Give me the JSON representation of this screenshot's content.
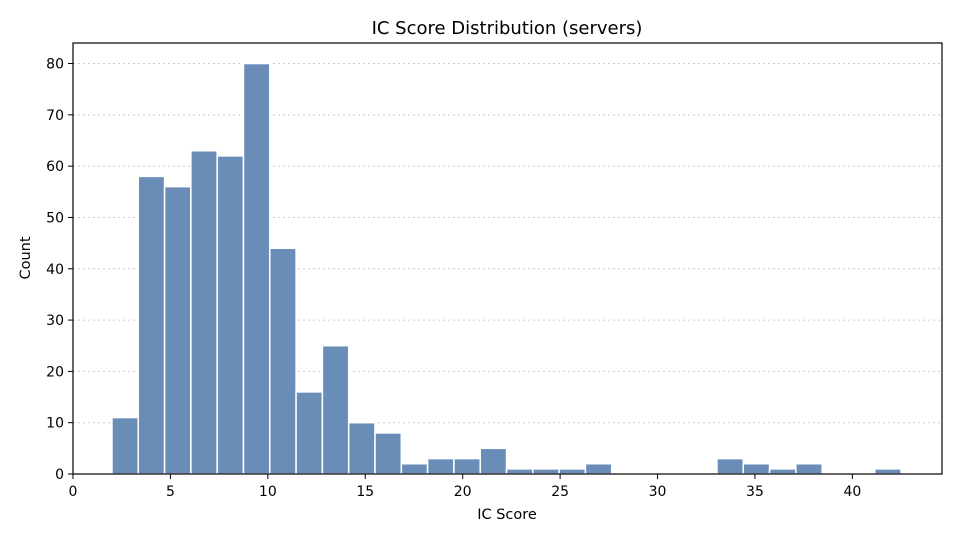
{
  "chart_data": {
    "type": "bar",
    "title": "IC Score Distribution (servers)",
    "xlabel": "IC Score",
    "ylabel": "Count",
    "xlim": [
      0,
      44.6
    ],
    "ylim": [
      0,
      84
    ],
    "xticks": [
      "0",
      "5",
      "10",
      "15",
      "20",
      "25",
      "30",
      "35",
      "40"
    ],
    "yticks": [
      "0",
      "10",
      "20",
      "30",
      "40",
      "50",
      "60",
      "70",
      "80"
    ],
    "grid": "horizontal dotted",
    "bin_width": 1.35,
    "bins": [
      {
        "start": 2.0,
        "count": 11
      },
      {
        "start": 3.35,
        "count": 58
      },
      {
        "start": 4.7,
        "count": 56
      },
      {
        "start": 6.05,
        "count": 63
      },
      {
        "start": 7.4,
        "count": 62
      },
      {
        "start": 8.75,
        "count": 80
      },
      {
        "start": 10.1,
        "count": 44
      },
      {
        "start": 11.45,
        "count": 16
      },
      {
        "start": 12.8,
        "count": 25
      },
      {
        "start": 14.15,
        "count": 10
      },
      {
        "start": 15.5,
        "count": 8
      },
      {
        "start": 16.85,
        "count": 2
      },
      {
        "start": 18.2,
        "count": 3
      },
      {
        "start": 19.55,
        "count": 3
      },
      {
        "start": 20.9,
        "count": 5
      },
      {
        "start": 22.25,
        "count": 1
      },
      {
        "start": 23.6,
        "count": 1
      },
      {
        "start": 24.95,
        "count": 1
      },
      {
        "start": 26.3,
        "count": 2
      },
      {
        "start": 27.65,
        "count": 0
      },
      {
        "start": 29.0,
        "count": 0
      },
      {
        "start": 30.35,
        "count": 0
      },
      {
        "start": 31.7,
        "count": 0
      },
      {
        "start": 33.05,
        "count": 3
      },
      {
        "start": 34.4,
        "count": 2
      },
      {
        "start": 35.75,
        "count": 1
      },
      {
        "start": 37.1,
        "count": 2
      },
      {
        "start": 38.45,
        "count": 0
      },
      {
        "start": 39.8,
        "count": 0
      },
      {
        "start": 41.15,
        "count": 1
      }
    ],
    "bar_color": "#6a8db8"
  }
}
